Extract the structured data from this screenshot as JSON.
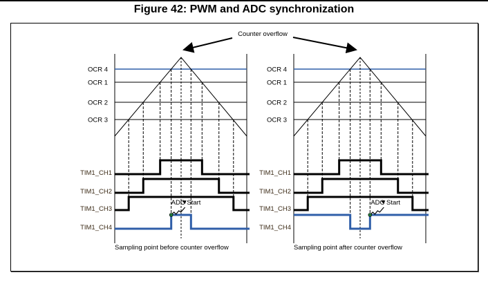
{
  "title": "Figure 42: PWM and ADC synchronization",
  "annotation": "Counter overflow",
  "ocr_labels": [
    "OCR 4",
    "OCR 1",
    "OCR 2",
    "OCR 3"
  ],
  "channel_labels": [
    "TIM1_CH1",
    "TIM1_CH2",
    "TIM1_CH3",
    "TIM1_CH4"
  ],
  "adc_label": "ADC Start",
  "panels": [
    {
      "caption": "Sampling point before counter overflow",
      "ch4_mode": "pulse-high"
    },
    {
      "caption": "Sampling point after counter overflow",
      "ch4_mode": "pulse-low"
    }
  ],
  "colors": {
    "ocr4": "#2f5ea8",
    "ch4": "#2f5ea8",
    "adc_dot": "#1f7a3a"
  }
}
